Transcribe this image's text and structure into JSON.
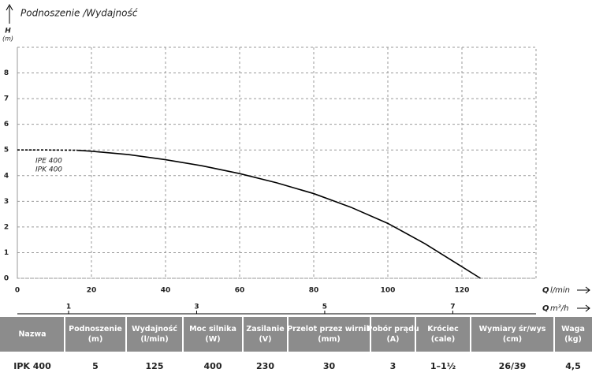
{
  "chart_data": {
    "type": "line",
    "title": "Podnoszenie /Wydajność",
    "y_label": "H",
    "y_unit": "(m)",
    "x_label": "Q",
    "x_unit": "l/min",
    "x2_label": "Q",
    "x2_unit": "m³/h",
    "annotations": [
      "IPE 400",
      "IPK 400"
    ],
    "xlim": [
      0,
      140
    ],
    "xticks": [
      0,
      20,
      40,
      60,
      80,
      100,
      120
    ],
    "ylim": [
      0,
      9
    ],
    "yticks": [
      0,
      1,
      2,
      3,
      4,
      5,
      6,
      7,
      8
    ],
    "x2lim": [
      0.2,
      8.3
    ],
    "x2ticks": [
      1,
      3,
      5,
      7
    ],
    "grid": true,
    "grid_style": "dashed",
    "series": [
      {
        "color": "#000000",
        "dashed": true,
        "x": [
          0,
          8,
          16
        ],
        "values": [
          5,
          5,
          4.99
        ]
      },
      {
        "color": "#000000",
        "dashed": false,
        "x": [
          16,
          20,
          30,
          40,
          50,
          60,
          70,
          80,
          90,
          100,
          110,
          120,
          125
        ],
        "values": [
          4.99,
          4.95,
          4.82,
          4.62,
          4.38,
          4.08,
          3.72,
          3.3,
          2.77,
          2.14,
          1.35,
          0.45,
          0
        ]
      }
    ]
  },
  "table": {
    "headers": [
      [
        "Nazwa"
      ],
      [
        "Podnoszenie",
        "(m)"
      ],
      [
        "Wydajność",
        "(l/min)"
      ],
      [
        "Moc silnika",
        "(W)"
      ],
      [
        "Zasilanie",
        "(V)"
      ],
      [
        "Przelot przez wirnik",
        "(mm)"
      ],
      [
        "Pobór prądu",
        "(A)"
      ],
      [
        "Króciec",
        "(cale)"
      ],
      [
        "Wymiary śr/wys",
        "(cm)"
      ],
      [
        "Waga",
        "(kg)"
      ]
    ],
    "rows": [
      [
        "IPK 400",
        "5",
        "125",
        "400",
        "230",
        "30",
        "3",
        "1–1½",
        "26/39",
        "4,5"
      ]
    ]
  }
}
